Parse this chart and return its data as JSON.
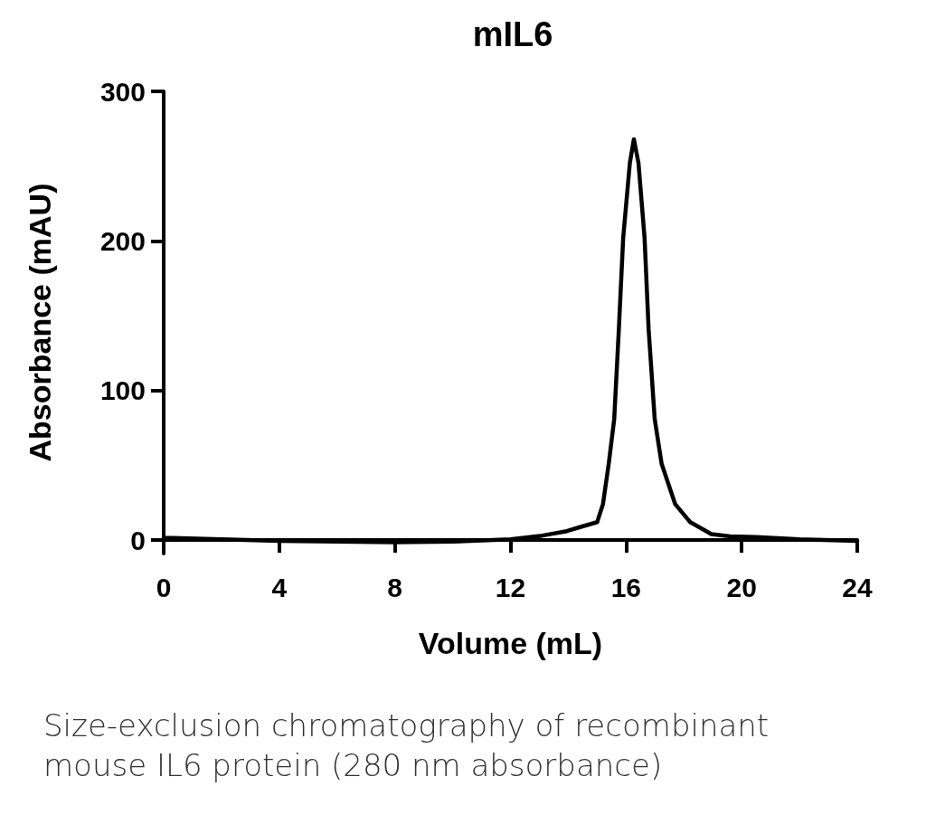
{
  "chart_data": {
    "type": "line",
    "title": "mIL6",
    "xlabel": "Volume (mL)",
    "ylabel": "Absorbance (mAU)",
    "annotations": [
      "Size-exclusion chromatography of recombinant\nmouse IL6 protein  (280 nm absorbance)"
    ],
    "xlim": [
      0,
      24
    ],
    "xticks": [
      0,
      4,
      8,
      12,
      16,
      20,
      24
    ],
    "ylim": [
      -9,
      300
    ],
    "yticks": [
      0,
      100,
      200,
      300
    ],
    "grid": false,
    "marker": "none",
    "line_style": "solid",
    "series": [
      {
        "color": "#000000",
        "x": [
          0,
          0.3,
          2,
          4,
          6,
          8,
          10,
          12,
          13.1,
          13.95,
          14.46,
          15.0,
          15.2,
          15.4,
          15.59,
          15.75,
          15.9,
          16.13,
          16.27,
          16.43,
          16.64,
          16.78,
          16.99,
          17.23,
          17.7,
          18.22,
          18.95,
          19.6,
          20.5,
          22,
          24
        ],
        "values": [
          1.5,
          1.5,
          0.5,
          -0.5,
          -1,
          -1.5,
          -1,
          0.5,
          3,
          6,
          9,
          12,
          24,
          51,
          81,
          141,
          202,
          252,
          268,
          252,
          202,
          141,
          81,
          51,
          24,
          12,
          4,
          2.5,
          2,
          0.5,
          -0.6
        ]
      }
    ]
  }
}
